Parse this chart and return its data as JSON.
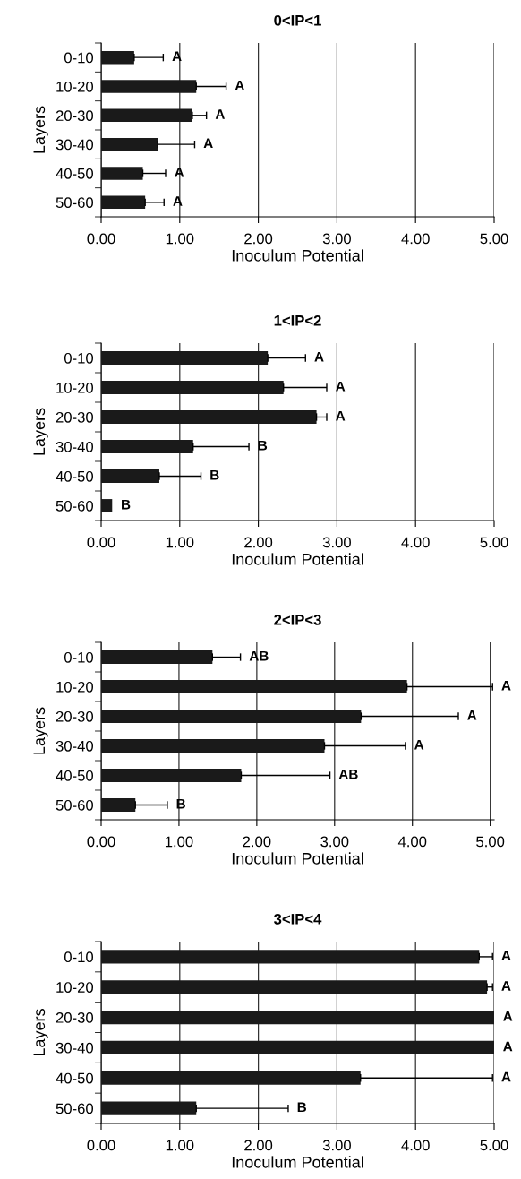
{
  "chart_data": [
    {
      "type": "bar",
      "orientation": "horizontal",
      "title": "0<IP<1",
      "xlabel": "Inoculum Potential",
      "ylabel": "Layers",
      "categories": [
        "0-10",
        "10-20",
        "20-30",
        "30-40",
        "40-50",
        "50-60"
      ],
      "values": [
        0.42,
        1.21,
        1.16,
        0.72,
        0.53,
        0.56
      ],
      "errors": [
        [
          0.42,
          0.79
        ],
        [
          1.21,
          1.59
        ],
        [
          1.16,
          1.34
        ],
        [
          0.72,
          1.19
        ],
        [
          0.53,
          0.82
        ],
        [
          0.56,
          0.8
        ]
      ],
      "color": "#1a1a1a",
      "xlim": [
        0,
        5
      ],
      "xticks": [
        {
          "value": 0,
          "label": "0.00"
        },
        {
          "value": 1,
          "label": "1.00"
        },
        {
          "value": 2,
          "label": "2.00"
        },
        {
          "value": 3,
          "label": "3.00"
        },
        {
          "value": 4,
          "label": "4.00"
        },
        {
          "value": 5,
          "label": "5.00"
        }
      ],
      "grid": "x",
      "annotations": [
        "A",
        "A",
        "A",
        "A",
        "A",
        "A"
      ]
    },
    {
      "type": "bar",
      "orientation": "horizontal",
      "title": "1<IP<2",
      "xlabel": "Inoculum Potential",
      "ylabel": "Layers",
      "categories": [
        "0-10",
        "10-20",
        "20-30",
        "30-40",
        "40-50",
        "50-60"
      ],
      "values": [
        2.12,
        2.32,
        2.74,
        1.17,
        0.74,
        0.14
      ],
      "errors": [
        [
          2.12,
          2.6
        ],
        [
          2.32,
          2.87
        ],
        [
          2.74,
          2.87
        ],
        [
          1.17,
          1.88
        ],
        [
          0.74,
          1.27
        ],
        null
      ],
      "color": "#1a1a1a",
      "xlim": [
        0,
        5
      ],
      "xticks": [
        {
          "value": 0,
          "label": "0.00"
        },
        {
          "value": 1,
          "label": "1.00"
        },
        {
          "value": 2,
          "label": "2.00"
        },
        {
          "value": 3,
          "label": "3.00"
        },
        {
          "value": 4,
          "label": "4.00"
        },
        {
          "value": 5,
          "label": "5.00"
        }
      ],
      "grid": "x",
      "annotations": [
        "A",
        "A",
        "A",
        "B",
        "B",
        "B"
      ]
    },
    {
      "type": "bar",
      "orientation": "horizontal",
      "title": "2<IP<3",
      "xlabel": "Inoculum Potential",
      "ylabel": "Layers",
      "categories": [
        "0-10",
        "10-20",
        "20-30",
        "30-40",
        "40-50",
        "50-60"
      ],
      "values": [
        1.43,
        3.93,
        3.34,
        2.87,
        1.8,
        0.44
      ],
      "errors": [
        [
          1.43,
          1.79
        ],
        [
          3.93,
          5.03
        ],
        [
          3.34,
          4.59
        ],
        [
          2.87,
          3.91
        ],
        [
          1.8,
          2.94
        ],
        [
          0.44,
          0.85
        ]
      ],
      "color": "#1a1a1a",
      "xlim": [
        0,
        5.05
      ],
      "xticks": [
        {
          "value": 0,
          "label": "0.00"
        },
        {
          "value": 1,
          "label": "1.00"
        },
        {
          "value": 2,
          "label": "2.00"
        },
        {
          "value": 3,
          "label": "3.00"
        },
        {
          "value": 4,
          "label": "4.00"
        },
        {
          "value": 5,
          "label": "5.00"
        }
      ],
      "grid": "x",
      "annotations": [
        "AB",
        "A",
        "A",
        "A",
        "AB",
        "B"
      ]
    },
    {
      "type": "bar",
      "orientation": "horizontal",
      "title": "3<IP<4",
      "xlabel": "Inoculum Potential",
      "ylabel": "Layers",
      "categories": [
        "0-10",
        "10-20",
        "20-30",
        "30-40",
        "40-50",
        "50-60"
      ],
      "values": [
        4.81,
        4.91,
        5.0,
        5.0,
        3.3,
        1.21
      ],
      "errors": [
        [
          4.81,
          4.98
        ],
        [
          4.91,
          4.98
        ],
        null,
        null,
        [
          3.3,
          4.98
        ],
        [
          1.21,
          2.38
        ]
      ],
      "color": "#1a1a1a",
      "xlim": [
        0,
        5
      ],
      "xticks": [
        {
          "value": 0,
          "label": "0.00"
        },
        {
          "value": 1,
          "label": "1.00"
        },
        {
          "value": 2,
          "label": "2.00"
        },
        {
          "value": 3,
          "label": "3.00"
        },
        {
          "value": 4,
          "label": "4.00"
        },
        {
          "value": 5,
          "label": "5.00"
        }
      ],
      "grid": "x",
      "annotations": [
        "A",
        "A",
        "A",
        "A",
        "A",
        "B"
      ]
    }
  ]
}
